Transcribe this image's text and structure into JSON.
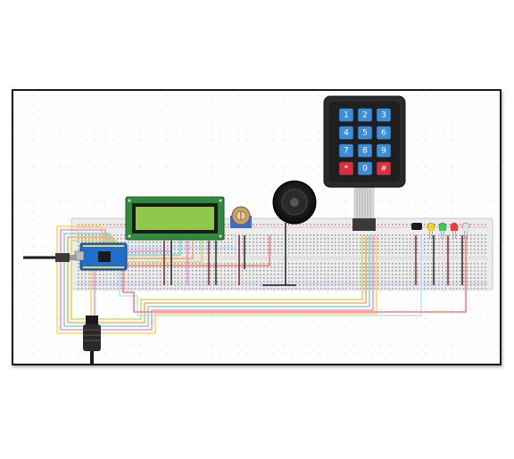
{
  "keypad": {
    "keys": [
      "1",
      "2",
      "3",
      "4",
      "5",
      "6",
      "7",
      "8",
      "9",
      "*",
      "0",
      "#"
    ]
  },
  "components": {
    "led_colors": [
      "#ffd21a",
      "#2cd24a",
      "#ff3333",
      "#e0e0e0"
    ],
    "lcd_color": "#8fc84a",
    "board_color": "#1e6fc9"
  },
  "wire_colors": [
    "#ffd23a",
    "#ff7ad0",
    "#5fd9c0",
    "#ff9b4a",
    "#c6d84a",
    "#a8e0ff",
    "#ff6262"
  ]
}
